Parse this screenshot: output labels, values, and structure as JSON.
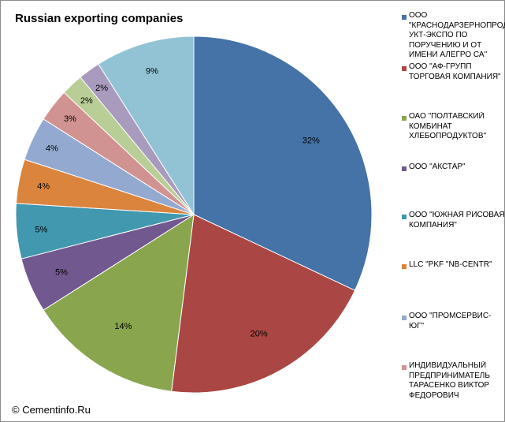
{
  "chart_data": {
    "type": "pie",
    "title": "Russian exporting companies",
    "source": "© Cementinfo.Ru",
    "slices": [
      {
        "label": "ООО \"КРАСНОДАРЗЕРНОПРОДУКТ-ЭКСПО ПО ПОРУЧЕНИЮ И ОТ ИМЕНИ АЛЕГРО СА\"",
        "legend_text": "ООО\n\"КРАСНОДАРЗЕРНОПРОД\nУКТ-ЭКСПО ПО\nПОРУЧЕНИЮ И ОТ\nИМЕНИ АЛЕГРО СА\"",
        "value": 32,
        "display": "32%",
        "color": "#4572A7"
      },
      {
        "label": "ООО \"АФ-ГРУПП ТОРГОВАЯ КОМПАНИЯ\"",
        "legend_text": "ООО \"АФ-ГРУПП\nТОРГОВАЯ КОМПАНИЯ\"",
        "value": 20,
        "display": "20%",
        "color": "#AA4643"
      },
      {
        "label": "ОАО \"ПОЛТАВСКИЙ КОМБИНАТ ХЛЕБОПРОДУКТОВ\"",
        "legend_text": "ОАО \"ПОЛТАВСКИЙ\nКОМБИНАТ\nХЛЕБОПРОДУКТОВ\"",
        "value": 14,
        "display": "14%",
        "color": "#89A54E"
      },
      {
        "label": "ООО \"АКСТАР\"",
        "legend_text": "ООО \"АКСТАР\"",
        "value": 5,
        "display": "5%",
        "color": "#71588F"
      },
      {
        "label": "ООО \"ЮЖНАЯ РИСОВАЯ КОМПАНИЯ\"",
        "legend_text": "ООО \"ЮЖНАЯ РИСОВАЯ\nКОМПАНИЯ\"",
        "value": 5,
        "display": "5%",
        "color": "#4198AF"
      },
      {
        "label": "LLC \"PKF \"NB-CENTR\"",
        "legend_text": "LLC \"PKF \"NB-CENTR\"",
        "value": 4,
        "display": "4%",
        "color": "#DB843D"
      },
      {
        "label": "ООО \"ПРОМСЕРВИС-ЮГ\"",
        "legend_text": "ООО \"ПРОМСЕРВИС-ЮГ\"",
        "value": 4,
        "display": "4%",
        "color": "#93A9CF"
      },
      {
        "label": "ИНДИВИДУАЛЬНЫЙ ПРЕДПРИНИМАТЕЛЬ ТАРАСЕНКО ВИКТОР ФЕДОРОВИЧ",
        "legend_text": "ИНДИВИДУАЛЬНЫЙ\nПРЕДПРИНИМАТЕЛЬ\nТАРАСЕНКО ВИКТОР\nФЕДОРОВИЧ",
        "value": 3,
        "display": "3%",
        "color": "#D19392"
      },
      {
        "label": "",
        "legend_text": "",
        "value": 2,
        "display": "2%",
        "color": "#B9CD96"
      },
      {
        "label": "",
        "legend_text": "",
        "value": 2,
        "display": "2%",
        "color": "#A99BBD"
      },
      {
        "label": "",
        "legend_text": "",
        "value": 9,
        "display": "9%",
        "color": "#92C3D4"
      }
    ],
    "legend_placement": "right",
    "start_angle": "12 o'clock",
    "direction": "clockwise"
  }
}
